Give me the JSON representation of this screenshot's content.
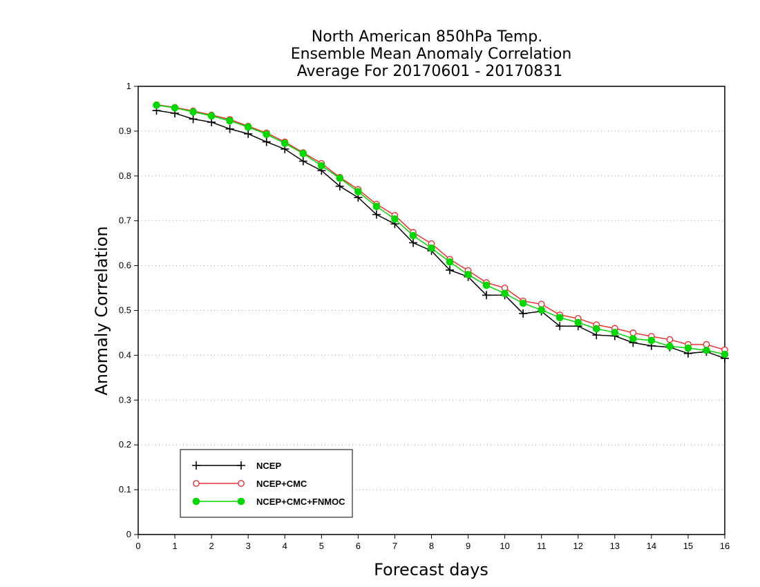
{
  "chart_data": {
    "type": "line",
    "title": [
      "North American 850hPa Temp.",
      "Ensemble Mean Anomaly Correlation",
      "Average For 20170601 - 20170831"
    ],
    "xlabel": "Forecast days",
    "ylabel": "Anomaly Correlation",
    "xlim": [
      0,
      16
    ],
    "ylim": [
      0,
      1
    ],
    "x_ticks": [
      "0",
      "1",
      "2",
      "3",
      "4",
      "5",
      "6",
      "7",
      "8",
      "9",
      "10",
      "11",
      "12",
      "13",
      "14",
      "15",
      "16"
    ],
    "y_ticks": [
      "0",
      "0.1",
      "0.2",
      "0.3",
      "0.4",
      "0.5",
      "0.6",
      "0.7",
      "0.8",
      "0.9",
      "1"
    ],
    "grid": true,
    "legend_position": "bottom-left",
    "x": [
      0.5,
      1,
      1.5,
      2,
      2.5,
      3,
      3.5,
      4,
      4.5,
      5,
      5.5,
      6,
      6.5,
      7,
      7.5,
      8,
      8.5,
      9,
      9.5,
      10,
      10.5,
      11,
      11.5,
      12,
      12.5,
      13,
      13.5,
      14,
      14.5,
      15,
      15.5,
      16
    ],
    "series": [
      {
        "name": "NCEP",
        "color": "#000000",
        "marker": "plus",
        "values": [
          0.946,
          0.94,
          0.927,
          0.92,
          0.905,
          0.894,
          0.876,
          0.86,
          0.833,
          0.812,
          0.777,
          0.752,
          0.714,
          0.693,
          0.651,
          0.633,
          0.59,
          0.575,
          0.534,
          0.534,
          0.493,
          0.498,
          0.465,
          0.465,
          0.445,
          0.443,
          0.428,
          0.421,
          0.418,
          0.404,
          0.408,
          0.393
        ]
      },
      {
        "name": "NCEP+CMC",
        "color": "#e83030",
        "marker": "open-circle",
        "values": [
          0.959,
          0.953,
          0.945,
          0.936,
          0.926,
          0.911,
          0.896,
          0.876,
          0.852,
          0.828,
          0.797,
          0.77,
          0.737,
          0.712,
          0.674,
          0.649,
          0.614,
          0.589,
          0.562,
          0.55,
          0.521,
          0.514,
          0.49,
          0.482,
          0.468,
          0.46,
          0.45,
          0.442,
          0.435,
          0.424,
          0.424,
          0.412
        ]
      },
      {
        "name": "NCEP+CMC+FNMOC",
        "color": "#00d800",
        "marker": "filled-circle",
        "values": [
          0.958,
          0.952,
          0.943,
          0.934,
          0.923,
          0.909,
          0.893,
          0.873,
          0.85,
          0.823,
          0.795,
          0.765,
          0.732,
          0.704,
          0.667,
          0.639,
          0.608,
          0.58,
          0.556,
          0.538,
          0.516,
          0.501,
          0.484,
          0.473,
          0.459,
          0.451,
          0.437,
          0.433,
          0.42,
          0.416,
          0.411,
          0.402
        ]
      }
    ]
  }
}
